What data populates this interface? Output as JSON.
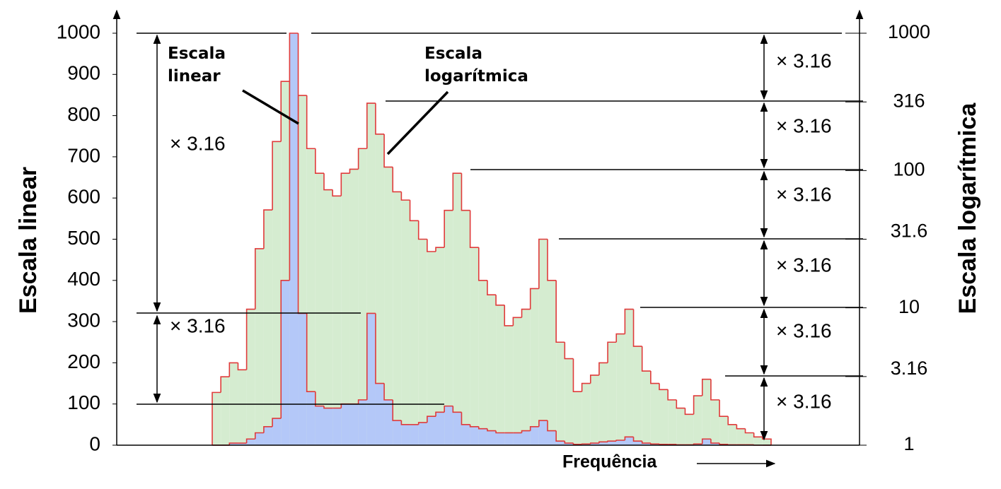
{
  "chart_data": {
    "type": "histogram",
    "xlabel": "Frequência",
    "ylabel": "Escala linear",
    "y2label": "Escala logarítmica",
    "bins": [
      0,
      1,
      2,
      3,
      4,
      5,
      6,
      7,
      8,
      9,
      10,
      11,
      12,
      13,
      14,
      15,
      16,
      17,
      18,
      19,
      20,
      21,
      22,
      23,
      24,
      25,
      26,
      27,
      28,
      29,
      30,
      31,
      32,
      33,
      34,
      35,
      36,
      37,
      38,
      39,
      40,
      41,
      42,
      43,
      44,
      45,
      46,
      47,
      48,
      49,
      50,
      51,
      52,
      53,
      54,
      55,
      56,
      57,
      58,
      59,
      60,
      61,
      62,
      63,
      64,
      65
    ],
    "xlim": [
      0,
      65
    ],
    "ylim": [
      0,
      1000
    ],
    "yticks": [
      0,
      100,
      200,
      300,
      400,
      500,
      600,
      700,
      800,
      900,
      1000
    ],
    "y2lim": [
      1,
      1000
    ],
    "y2ticks": [
      1,
      3.16,
      10,
      31.6,
      100,
      316,
      1000
    ],
    "y2log": true,
    "series": [
      {
        "name": "Escala logarítmica",
        "color": "#d5ecd0",
        "edge": "#e03a3a",
        "values": [
          128,
          166,
          200,
          183,
          330,
          477,
          571,
          737,
          883,
          785,
          849,
          720,
          660,
          620,
          605,
          660,
          670,
          720,
          830,
          755,
          675,
          615,
          595,
          545,
          500,
          470,
          480,
          570,
          660,
          570,
          480,
          400,
          365,
          340,
          290,
          310,
          330,
          380,
          500,
          400,
          250,
          210,
          130,
          150,
          170,
          200,
          250,
          270,
          330,
          240,
          180,
          150,
          135,
          110,
          90,
          75,
          120,
          160,
          110,
          70,
          50,
          40,
          30,
          20,
          15
        ]
      },
      {
        "name": "Escala linear",
        "color": "#b4c8f8",
        "edge": "#e03a3a",
        "values": [
          0,
          0,
          5,
          5,
          15,
          30,
          45,
          65,
          400,
          1000,
          320,
          130,
          95,
          90,
          90,
          100,
          100,
          110,
          320,
          150,
          110,
          60,
          50,
          50,
          55,
          70,
          80,
          95,
          80,
          50,
          45,
          40,
          35,
          30,
          30,
          30,
          35,
          45,
          60,
          35,
          10,
          5,
          2,
          3,
          5,
          8,
          10,
          12,
          20,
          10,
          5,
          3,
          2,
          2,
          1,
          1,
          3,
          15,
          5,
          2,
          1,
          1,
          1,
          0,
          0
        ]
      }
    ],
    "annotations": [
      "× 3.16",
      "× 3.16",
      "× 3.16",
      "× 3.16",
      "× 3.16",
      "× 3.16",
      "× 3.16",
      "× 3.16"
    ]
  }
}
